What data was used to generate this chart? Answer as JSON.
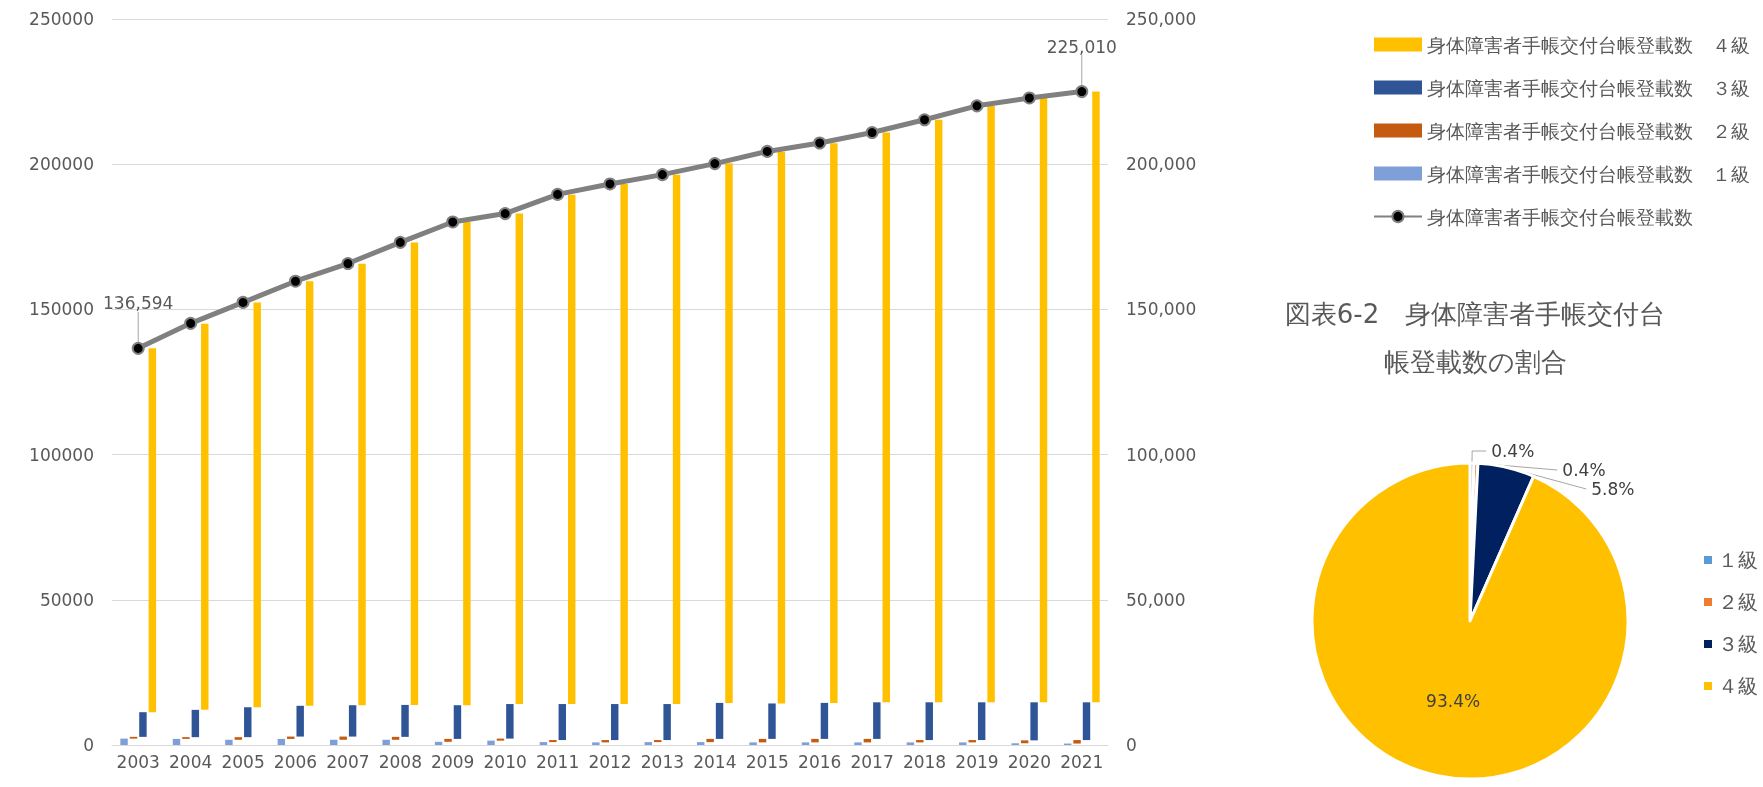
{
  "chart_data": [
    {
      "type": "bar",
      "categories": [
        "2003",
        "2004",
        "2005",
        "2006",
        "2007",
        "2008",
        "2009",
        "2010",
        "2011",
        "2012",
        "2013",
        "2014",
        "2015",
        "2016",
        "2017",
        "2018",
        "2019",
        "2020",
        "2021"
      ],
      "series": [
        {
          "name": "身体障害者手帳交付台帳登載数　１級",
          "color": "#7f9fd8",
          "values": [
            2200,
            2100,
            1800,
            2100,
            1800,
            1800,
            1100,
            1500,
            1000,
            900,
            1000,
            1000,
            900,
            900,
            900,
            900,
            900,
            600,
            500
          ]
        },
        {
          "name": "身体障害者手帳交付台帳登載数　２級",
          "color": "#c55a11",
          "base": [
            2200,
            2100,
            1800,
            2100,
            1800,
            1800,
            1100,
            1500,
            1000,
            900,
            1000,
            1000,
            900,
            900,
            900,
            900,
            900,
            600,
            500
          ],
          "values": [
            600,
            600,
            900,
            800,
            1100,
            1000,
            1000,
            700,
            700,
            800,
            700,
            1100,
            1200,
            1200,
            1200,
            800,
            800,
            1000,
            1200
          ]
        },
        {
          "name": "身体障害者手帳交付台帳登載数　３級",
          "color": "#2f5597",
          "base": [
            2800,
            2700,
            2700,
            2900,
            2900,
            2800,
            2100,
            2200,
            1700,
            1700,
            1700,
            2100,
            2100,
            2100,
            2100,
            1700,
            1700,
            1600,
            1700
          ],
          "values": [
            8500,
            9400,
            10300,
            10600,
            10800,
            11000,
            11600,
            11900,
            12400,
            12400,
            12400,
            12400,
            12200,
            12400,
            12600,
            13000,
            13000,
            13100,
            13000
          ]
        },
        {
          "name": "身体障害者手帳交付台帳登載数　４級",
          "color": "#ffc000",
          "base": [
            11300,
            12100,
            13000,
            13500,
            13700,
            13800,
            13700,
            14100,
            14100,
            14100,
            14100,
            14500,
            14300,
            14500,
            14700,
            14700,
            14700,
            14700,
            14700
          ],
          "values": [
            125300,
            133000,
            139400,
            146200,
            152000,
            159200,
            166400,
            168900,
            175400,
            179100,
            182300,
            185800,
            190000,
            192700,
            196200,
            200600,
            205400,
            208100,
            210300
          ]
        },
        {
          "name": "身体障害者手帳交付台帳登載数",
          "type": "line",
          "axis": "y2",
          "color": "#808080",
          "marker": "circle",
          "values": [
            136594,
            145200,
            152400,
            159700,
            165800,
            173100,
            180100,
            183000,
            189600,
            193200,
            196400,
            200200,
            204400,
            207300,
            210900,
            215300,
            220100,
            222800,
            225010
          ],
          "value_labels": [
            "136,594",
            null,
            null,
            null,
            null,
            null,
            null,
            null,
            null,
            null,
            null,
            null,
            null,
            null,
            null,
            null,
            null,
            null,
            "225,010"
          ]
        }
      ],
      "ylim": [
        0,
        250000
      ],
      "yticks": [
        0,
        50000,
        100000,
        150000,
        200000,
        250000
      ],
      "y2lim": [
        0,
        250000
      ],
      "y2ticks": [
        {
          "value": 0,
          "label": "0"
        },
        {
          "value": 50000,
          "label": "50,000"
        },
        {
          "value": 100000,
          "label": "100,000"
        },
        {
          "value": 150000,
          "label": "150,000"
        },
        {
          "value": 200000,
          "label": "200,000"
        },
        {
          "value": 250000,
          "label": "250,000"
        }
      ],
      "grid": "y",
      "legend": "top right"
    },
    {
      "type": "pie",
      "title": "図表6-2　身体障害者手帳交付台帳登載数の割合",
      "categories": [
        "１級",
        "２級",
        "３級",
        "４級"
      ],
      "values": [
        0.4,
        0.4,
        5.8,
        93.4
      ],
      "value_labels": [
        "0.4%",
        "0.4%",
        "5.8%",
        "93.4%"
      ],
      "colors": [
        "#5b9bd5",
        "#ed7d31",
        "#002060",
        "#ffc000"
      ],
      "legend": "right"
    }
  ]
}
